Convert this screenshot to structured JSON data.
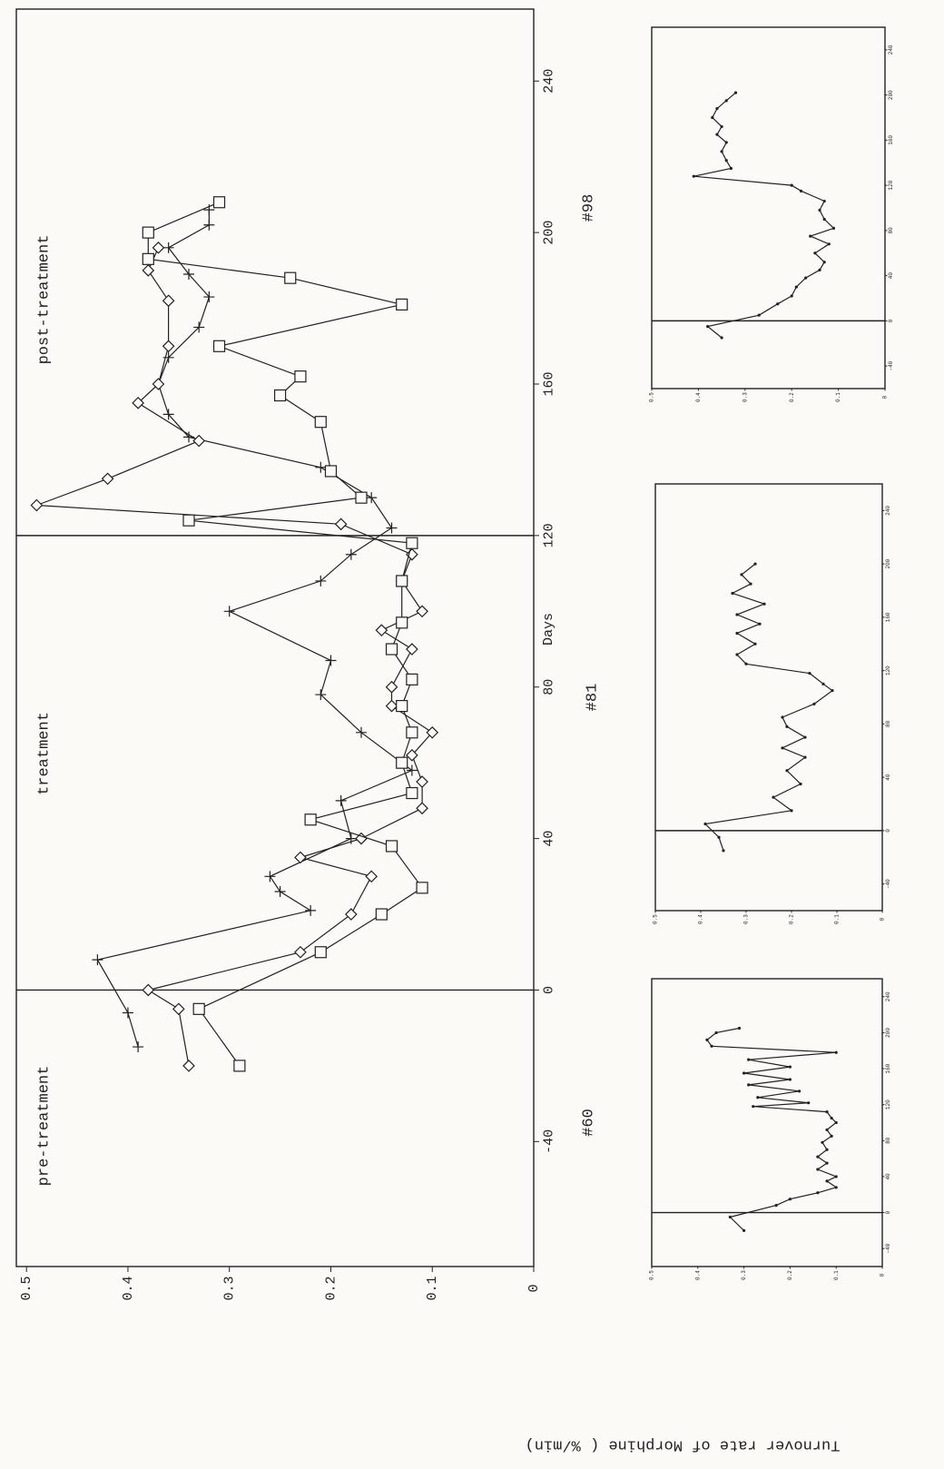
{
  "chart_data": [
    {
      "type": "line",
      "xlabel": "Days",
      "ylabel": "Turnover rate of Morphine ( %/min)",
      "annotations": [
        "pre-treatment",
        "treatment",
        "post-treatment"
      ],
      "xlim": [
        -73,
        259
      ],
      "xticks": [
        -40,
        0,
        40,
        80,
        120,
        160,
        200,
        240
      ],
      "ylim": [
        0,
        0.51
      ],
      "yticks": [
        0,
        0.1,
        0.2,
        0.3,
        0.4,
        0.5
      ],
      "vlines": [
        0,
        120
      ],
      "series": [
        {
          "marker": "plus",
          "color": "#222",
          "x": [
            -15,
            -6,
            8,
            21,
            26,
            30,
            40,
            50,
            58,
            68,
            78,
            87,
            100,
            108,
            115,
            122,
            130,
            138,
            146,
            152,
            160,
            167,
            175,
            183,
            189,
            196,
            202,
            206
          ],
          "values": [
            0.39,
            0.4,
            0.43,
            0.22,
            0.25,
            0.26,
            0.18,
            0.19,
            0.12,
            0.17,
            0.21,
            0.2,
            0.3,
            0.21,
            0.18,
            0.14,
            0.16,
            0.21,
            0.34,
            0.36,
            0.37,
            0.36,
            0.33,
            0.32,
            0.34,
            0.36,
            0.32,
            0.32
          ]
        },
        {
          "marker": "diamond",
          "color": "#222",
          "x": [
            -20,
            -5,
            0,
            10,
            20,
            30,
            35,
            40,
            48,
            55,
            62,
            68,
            75,
            80,
            90,
            95,
            100,
            108,
            115,
            123,
            128,
            135,
            145,
            155,
            160,
            170,
            182,
            190,
            196
          ],
          "values": [
            0.34,
            0.35,
            0.38,
            0.23,
            0.18,
            0.16,
            0.23,
            0.17,
            0.11,
            0.11,
            0.12,
            0.1,
            0.14,
            0.14,
            0.12,
            0.15,
            0.11,
            0.13,
            0.12,
            0.19,
            0.49,
            0.42,
            0.33,
            0.39,
            0.37,
            0.36,
            0.36,
            0.38,
            0.37
          ]
        },
        {
          "marker": "square",
          "color": "#222",
          "x": [
            -20,
            -5,
            10,
            20,
            27,
            38,
            45,
            52,
            60,
            68,
            75,
            82,
            90,
            97,
            108,
            118,
            124,
            130,
            137,
            150,
            157,
            162,
            170,
            181,
            188,
            193,
            200,
            208
          ],
          "values": [
            0.29,
            0.33,
            0.21,
            0.15,
            0.11,
            0.14,
            0.22,
            0.12,
            0.13,
            0.12,
            0.13,
            0.12,
            0.14,
            0.13,
            0.13,
            0.12,
            0.34,
            0.17,
            0.2,
            0.21,
            0.25,
            0.23,
            0.31,
            0.13,
            0.24,
            0.38,
            0.38,
            0.31
          ]
        }
      ]
    },
    {
      "type": "line",
      "title": "#60",
      "xlim": [
        -60,
        260
      ],
      "xticks": [
        -40,
        0,
        40,
        80,
        120,
        160,
        200,
        240
      ],
      "ylim": [
        0,
        0.5
      ],
      "yticks": [
        0,
        0.1,
        0.2,
        0.3,
        0.4,
        0.5
      ],
      "vlines": [
        0
      ],
      "series": [
        {
          "marker": "dot",
          "color": "#222",
          "x": [
            -20,
            -5,
            8,
            15,
            22,
            28,
            35,
            40,
            48,
            55,
            62,
            70,
            78,
            85,
            92,
            100,
            105,
            112,
            118,
            122,
            128,
            135,
            142,
            148,
            155,
            162,
            170,
            178,
            185,
            192,
            200,
            205
          ],
          "values": [
            0.3,
            0.33,
            0.23,
            0.2,
            0.14,
            0.1,
            0.12,
            0.1,
            0.14,
            0.12,
            0.14,
            0.12,
            0.13,
            0.11,
            0.12,
            0.1,
            0.11,
            0.12,
            0.28,
            0.16,
            0.27,
            0.18,
            0.29,
            0.2,
            0.3,
            0.2,
            0.29,
            0.1,
            0.37,
            0.38,
            0.36,
            0.31
          ]
        }
      ]
    },
    {
      "type": "line",
      "title": "#81",
      "xlim": [
        -60,
        260
      ],
      "xticks": [
        -40,
        0,
        40,
        80,
        120,
        160,
        200,
        240
      ],
      "ylim": [
        0,
        0.5
      ],
      "yticks": [
        0,
        0.1,
        0.2,
        0.3,
        0.4,
        0.5
      ],
      "vlines": [
        0
      ],
      "series": [
        {
          "marker": "dot",
          "color": "#222",
          "x": [
            -15,
            -5,
            5,
            15,
            25,
            35,
            45,
            55,
            62,
            70,
            78,
            85,
            95,
            105,
            110,
            118,
            125,
            132,
            140,
            148,
            155,
            162,
            170,
            178,
            185,
            192,
            200
          ],
          "values": [
            0.35,
            0.36,
            0.39,
            0.2,
            0.24,
            0.18,
            0.21,
            0.17,
            0.22,
            0.17,
            0.21,
            0.22,
            0.15,
            0.11,
            0.13,
            0.16,
            0.3,
            0.32,
            0.28,
            0.32,
            0.27,
            0.32,
            0.26,
            0.33,
            0.29,
            0.31,
            0.28
          ]
        }
      ]
    },
    {
      "type": "line",
      "title": "#98",
      "xlim": [
        -60,
        260
      ],
      "xticks": [
        -40,
        0,
        40,
        80,
        120,
        160,
        200,
        240
      ],
      "ylim": [
        0,
        0.5
      ],
      "yticks": [
        0,
        0.1,
        0.2,
        0.3,
        0.4,
        0.5
      ],
      "vlines": [
        0
      ],
      "series": [
        {
          "marker": "dot",
          "color": "#222",
          "x": [
            -15,
            -5,
            5,
            15,
            22,
            30,
            38,
            45,
            52,
            60,
            68,
            75,
            82,
            90,
            98,
            106,
            115,
            120,
            128,
            135,
            142,
            150,
            158,
            165,
            172,
            180,
            188,
            195,
            202
          ],
          "values": [
            0.35,
            0.38,
            0.27,
            0.23,
            0.2,
            0.19,
            0.17,
            0.14,
            0.13,
            0.15,
            0.12,
            0.16,
            0.11,
            0.13,
            0.14,
            0.13,
            0.18,
            0.2,
            0.41,
            0.33,
            0.34,
            0.35,
            0.34,
            0.36,
            0.35,
            0.37,
            0.36,
            0.34,
            0.32
          ]
        }
      ]
    }
  ]
}
